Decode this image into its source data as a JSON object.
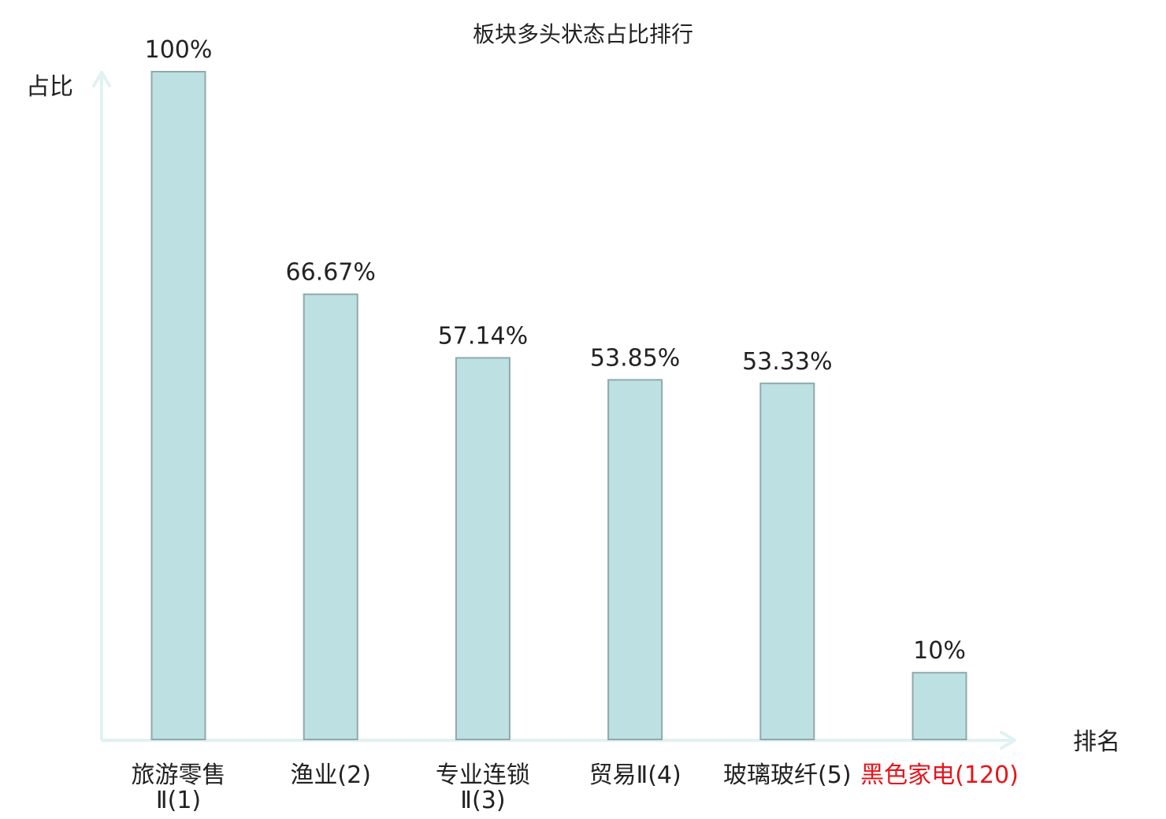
{
  "chart_data": {
    "type": "bar",
    "title": "板块多头状态占比排行",
    "ylabel": "占比",
    "xlabel": "排名",
    "ylim": [
      0,
      100
    ],
    "grid": false,
    "categories": [
      {
        "lines": [
          {
            "parts": [
              {
                "text": "旅游零售",
                "highlight": false
              }
            ]
          },
          {
            "parts": [
              {
                "text": "Ⅱ(1)",
                "highlight": false
              }
            ]
          }
        ]
      },
      {
        "lines": [
          {
            "parts": [
              {
                "text": "渔业(2)",
                "highlight": false
              }
            ]
          }
        ]
      },
      {
        "lines": [
          {
            "parts": [
              {
                "text": "专业连锁",
                "highlight": false
              }
            ]
          },
          {
            "parts": [
              {
                "text": "Ⅱ(3)",
                "highlight": false
              }
            ]
          }
        ]
      },
      {
        "lines": [
          {
            "parts": [
              {
                "text": "贸易Ⅱ(4)",
                "highlight": false
              }
            ]
          }
        ]
      },
      {
        "lines": [
          {
            "parts": [
              {
                "text": "玻璃玻纤(5)",
                "highlight": false
              }
            ]
          }
        ]
      },
      {
        "lines": [
          {
            "parts": [
              {
                "text": "黑色家电(120)",
                "highlight": true
              }
            ]
          }
        ]
      }
    ],
    "values": [
      100,
      66.67,
      57.14,
      53.85,
      53.33,
      10
    ],
    "value_labels": [
      "100%",
      "66.67%",
      "57.14%",
      "53.85%",
      "53.33%",
      "10%"
    ],
    "colors": {
      "bar_fill": "#bde0e2",
      "bar_stroke": "#8fa9ab",
      "axis": "#e0f2f1",
      "text": "#222222",
      "highlight": "#e8141b"
    }
  }
}
